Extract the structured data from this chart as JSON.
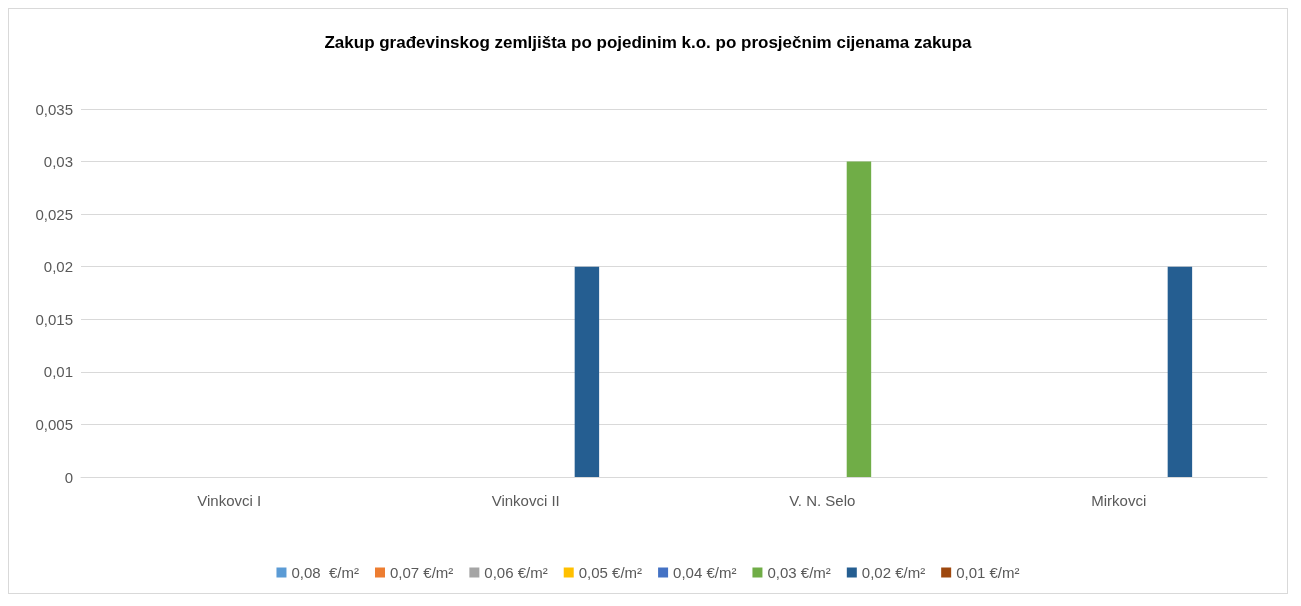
{
  "chart_data": {
    "type": "bar",
    "title": "Zakup građevinskog zemljišta po pojedinim k.o. po prosječnim cijenama zakupa",
    "categories": [
      "Vinkovci I",
      "Vinkovci II",
      "V. N. Selo",
      "Mirkovci"
    ],
    "series": [
      {
        "name": "0,08  €/m²",
        "color": "#5b9bd5",
        "values": [
          null,
          null,
          null,
          null
        ]
      },
      {
        "name": "0,07 €/m²",
        "color": "#ed7d31",
        "values": [
          null,
          null,
          null,
          null
        ]
      },
      {
        "name": "0,06 €/m²",
        "color": "#a5a5a5",
        "values": [
          null,
          null,
          null,
          null
        ]
      },
      {
        "name": "0,05 €/m²",
        "color": "#ffc000",
        "values": [
          null,
          null,
          null,
          null
        ]
      },
      {
        "name": "0,04 €/m²",
        "color": "#4472c4",
        "values": [
          null,
          null,
          null,
          null
        ]
      },
      {
        "name": "0,03 €/m²",
        "color": "#70ad47",
        "values": [
          null,
          null,
          0.03,
          null
        ]
      },
      {
        "name": "0,02 €/m²",
        "color": "#255e91",
        "values": [
          null,
          0.02,
          null,
          0.02
        ]
      },
      {
        "name": "0,01 €/m²",
        "color": "#9e480e",
        "values": [
          null,
          null,
          null,
          null
        ]
      }
    ],
    "ylim": [
      0,
      0.035
    ],
    "yticks": [
      {
        "value": 0,
        "label": "0"
      },
      {
        "value": 0.005,
        "label": "0,005"
      },
      {
        "value": 0.01,
        "label": "0,01"
      },
      {
        "value": 0.015,
        "label": "0,015"
      },
      {
        "value": 0.02,
        "label": "0,02"
      },
      {
        "value": 0.025,
        "label": "0,025"
      },
      {
        "value": 0.03,
        "label": "0,03"
      },
      {
        "value": 0.035,
        "label": "0,035"
      }
    ],
    "grid": "y",
    "legend": "bottom"
  }
}
